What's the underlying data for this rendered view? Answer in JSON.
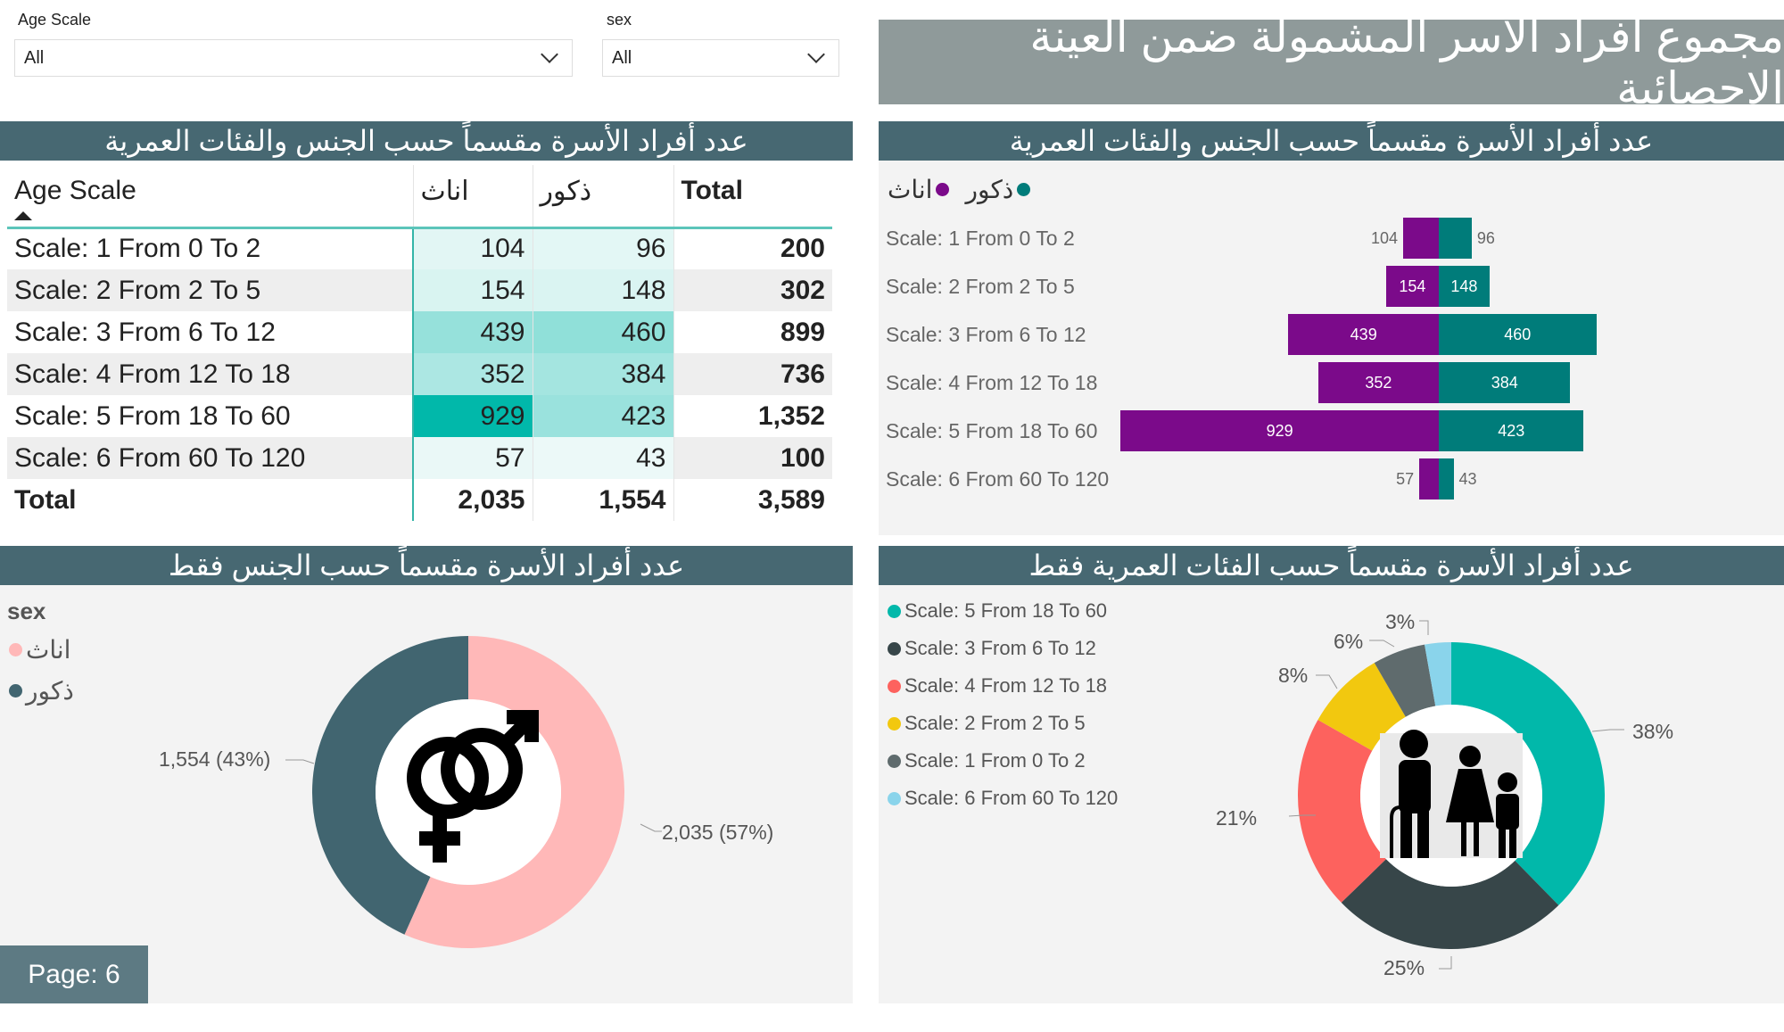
{
  "slicers": [
    {
      "label": "Age Scale",
      "value": "All"
    },
    {
      "label": "sex",
      "value": "All"
    }
  ],
  "banner": "مجموع أفراد الأسر المشمولة ضمن العينة الاحصائية",
  "table": {
    "title": "عدد أفراد الأسرة مقسماً حسب الجنس والفئات العمرية",
    "headers": [
      "Age Scale",
      "اناث",
      "ذكور",
      "Total"
    ],
    "rows": [
      [
        "Scale: 1 From 0 To 2",
        "104",
        "96",
        "200"
      ],
      [
        "Scale: 2 From 2 To 5",
        "154",
        "148",
        "302"
      ],
      [
        "Scale: 3 From 6 To 12",
        "439",
        "460",
        "899"
      ],
      [
        "Scale: 4 From 12 To 18",
        "352",
        "384",
        "736"
      ],
      [
        "Scale: 5 From 18 To 60",
        "929",
        "423",
        "1,352"
      ],
      [
        "Scale: 6 From 60 To 120",
        "57",
        "43",
        "100"
      ]
    ],
    "total": [
      "Total",
      "2,035",
      "1,554",
      "3,589"
    ]
  },
  "bar_panel": {
    "title": "عدد أفراد الأسرة مقسماً حسب الجنس والفئات العمرية",
    "legend": [
      "اناث",
      "ذكور"
    ]
  },
  "sex_panel": {
    "title": "عدد أفراد الأسرة مقسماً حسب الجنس فقط",
    "legend_title": "sex",
    "legend": [
      "اناث",
      "ذكور"
    ],
    "labels": [
      "2,035 (57%)",
      "1,554 (43%)"
    ]
  },
  "age_panel": {
    "title": "عدد أفراد الأسرة مقسماً حسب الفئات العمرية فقط",
    "legend": [
      "Scale: 5 From 18 To 60",
      "Scale: 3 From 6 To 12",
      "Scale: 4 From 12 To 18",
      "Scale: 2 From 2 To 5",
      "Scale: 1 From 0 To 2",
      "Scale: 6 From 60 To 120"
    ],
    "labels": [
      "38%",
      "25%",
      "21%",
      "8%",
      "6%",
      "3%"
    ]
  },
  "page_label": "Page: 6",
  "colors": {
    "female": "#7b0a8a",
    "male": "#007c7a",
    "pink": "#ffb8b8",
    "slate": "#416570",
    "age": [
      "#01b8aa",
      "#374649",
      "#fd625e",
      "#f2c80f",
      "#5f6b6d",
      "#8ad4eb"
    ]
  },
  "chart_data": [
    {
      "type": "bar",
      "title": "عدد أفراد الأسرة مقسماً حسب الجنس والفئات العمرية",
      "categories": [
        "Scale: 1 From 0 To 2",
        "Scale: 2 From 2 To 5",
        "Scale: 3 From 6 To 12",
        "Scale: 4 From 12 To 18",
        "Scale: 5 From 18 To 60",
        "Scale: 6 From 60 To 120"
      ],
      "series": [
        {
          "name": "اناث",
          "values": [
            104,
            154,
            439,
            352,
            929,
            57
          ]
        },
        {
          "name": "ذكور",
          "values": [
            96,
            148,
            460,
            384,
            423,
            43
          ]
        }
      ]
    },
    {
      "type": "pie",
      "title": "عدد أفراد الأسرة مقسماً حسب الجنس فقط",
      "categories": [
        "اناث",
        "ذكور"
      ],
      "values": [
        2035,
        1554
      ]
    },
    {
      "type": "pie",
      "title": "عدد أفراد الأسرة مقسماً حسب الفئات العمرية فقط",
      "categories": [
        "Scale: 5 From 18 To 60",
        "Scale: 3 From 6 To 12",
        "Scale: 4 From 12 To 18",
        "Scale: 2 From 2 To 5",
        "Scale: 1 From 0 To 2",
        "Scale: 6 From 60 To 120"
      ],
      "values": [
        1352,
        899,
        736,
        302,
        200,
        100
      ]
    }
  ]
}
